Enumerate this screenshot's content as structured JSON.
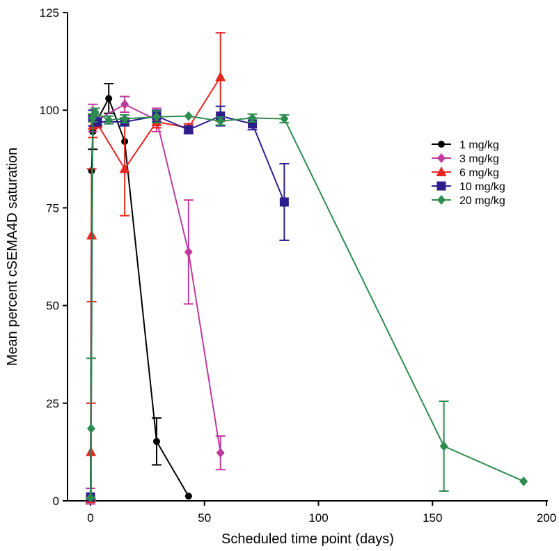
{
  "chart_data": {
    "type": "line",
    "title": "",
    "xlabel": "Scheduled time point (days)",
    "ylabel": "Mean percent cSEMA4D saturation",
    "xlim": [
      -8,
      200
    ],
    "ylim": [
      0,
      125
    ],
    "xticks": [
      0,
      50,
      100,
      150,
      200
    ],
    "yticks": [
      0,
      25,
      50,
      75,
      100,
      125
    ],
    "grid": false,
    "legend_position": "right",
    "series": [
      {
        "name": "1 mg/kg",
        "color": "#000000",
        "marker": "circle",
        "points": [
          {
            "x": 0,
            "y": 1,
            "err": 0
          },
          {
            "x": 0.5,
            "y": 84.5,
            "err": 0
          },
          {
            "x": 1,
            "y": 94.5,
            "err": 4.5
          },
          {
            "x": 3,
            "y": 97.5,
            "err": 0
          },
          {
            "x": 8,
            "y": 103,
            "err": 3.8
          },
          {
            "x": 15,
            "y": 92,
            "err": 0
          },
          {
            "x": 29,
            "y": 15.2,
            "err": 6
          },
          {
            "x": 43,
            "y": 1.2,
            "err": 0
          }
        ]
      },
      {
        "name": "3 mg/kg",
        "color": "#c0399f",
        "marker": "diamond",
        "points": [
          {
            "x": 0,
            "y": 1.2,
            "err": 2
          },
          {
            "x": 1,
            "y": 98,
            "err": 3.5
          },
          {
            "x": 3,
            "y": 97.5,
            "err": 1
          },
          {
            "x": 15,
            "y": 101.5,
            "err": 2
          },
          {
            "x": 29,
            "y": 97.5,
            "err": 3
          },
          {
            "x": 43,
            "y": 63.7,
            "err": 13.3
          },
          {
            "x": 57,
            "y": 12.3,
            "err": 4.3
          }
        ]
      },
      {
        "name": "6 mg/kg",
        "color": "#e8251f",
        "marker": "triangle",
        "points": [
          {
            "x": 0,
            "y": 0.5,
            "err": 0
          },
          {
            "x": 0.2,
            "y": 12.5,
            "err": 12.5
          },
          {
            "x": 0.5,
            "y": 68,
            "err": 17
          },
          {
            "x": 1,
            "y": 96,
            "err": 3
          },
          {
            "x": 3,
            "y": 96.5,
            "err": 1
          },
          {
            "x": 15,
            "y": 85,
            "err": 12
          },
          {
            "x": 29,
            "y": 97,
            "err": 1.5
          },
          {
            "x": 43,
            "y": 95.5,
            "err": 1
          },
          {
            "x": 57,
            "y": 108.5,
            "err": 11.3
          }
        ]
      },
      {
        "name": "10 mg/kg",
        "color": "#2b1e8c",
        "marker": "square",
        "points": [
          {
            "x": 0,
            "y": 1,
            "err": 0
          },
          {
            "x": 1,
            "y": 98,
            "err": 2
          },
          {
            "x": 3,
            "y": 97,
            "err": 1
          },
          {
            "x": 15,
            "y": 97,
            "err": 1
          },
          {
            "x": 29,
            "y": 98.5,
            "err": 1.5
          },
          {
            "x": 43,
            "y": 95,
            "err": 1
          },
          {
            "x": 57,
            "y": 98.5,
            "err": 2.5
          },
          {
            "x": 71,
            "y": 96.5,
            "err": 1.5
          },
          {
            "x": 85,
            "y": 76.5,
            "err": 9.8
          }
        ]
      },
      {
        "name": "20 mg/kg",
        "color": "#2e8b4f",
        "marker": "diamond",
        "points": [
          {
            "x": 0,
            "y": 0.8,
            "err": 0
          },
          {
            "x": 0.3,
            "y": 18.5,
            "err": 18
          },
          {
            "x": 1,
            "y": 98,
            "err": 1
          },
          {
            "x": 2,
            "y": 99.5,
            "err": 1
          },
          {
            "x": 8,
            "y": 97.5,
            "err": 1
          },
          {
            "x": 15,
            "y": 97.8,
            "err": 1
          },
          {
            "x": 29,
            "y": 98.3,
            "err": 1.5
          },
          {
            "x": 43,
            "y": 98.5,
            "err": 0
          },
          {
            "x": 57,
            "y": 97.2,
            "err": 1
          },
          {
            "x": 71,
            "y": 98,
            "err": 1
          },
          {
            "x": 85,
            "y": 97.8,
            "err": 1
          },
          {
            "x": 155,
            "y": 14,
            "err": 11.5
          },
          {
            "x": 190,
            "y": 5,
            "err": 0
          }
        ]
      }
    ]
  }
}
